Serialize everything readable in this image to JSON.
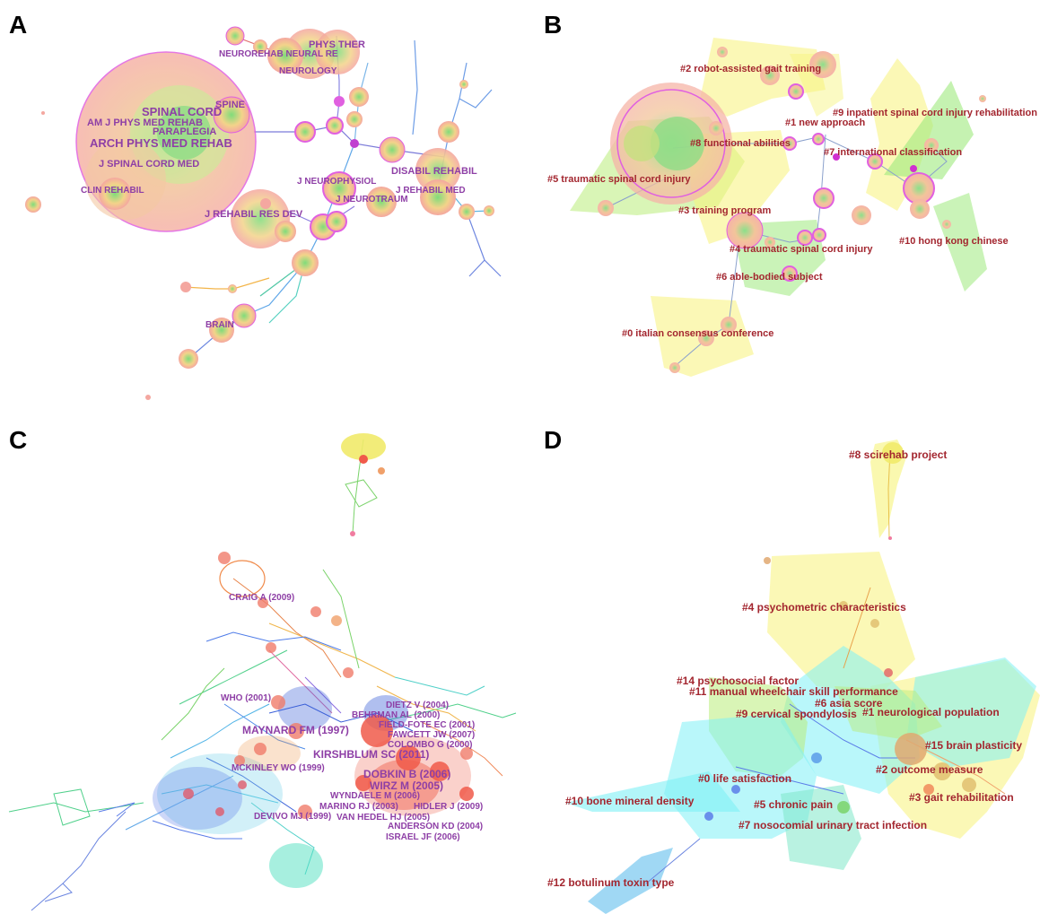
{
  "panels": {
    "a": {
      "letter": "A",
      "labels": {
        "spinal_cord": "SPINAL CORD",
        "arch_phys_med_rehab": "ARCH PHYS MED REHAB",
        "am_j_phys_med_rehab": "AM J PHYS MED REHAB",
        "paraplegia": "PARAPLEGIA",
        "spine": "SPINE",
        "j_spinal_cord_med": "J SPINAL CORD MED",
        "clin_rehabil": "CLIN REHABIL",
        "j_rehabil_res_dev": "J REHABIL RES DEV",
        "neurorehab_neural_re": "NEUROREHAB NEURAL RE",
        "phys_ther": "PHYS THER",
        "neurology": "NEUROLOGY",
        "j_neurophysiol": "J NEUROPHYSIOL",
        "j_neurotraum": "J NEUROTRAUM",
        "disabil_rehabil": "DISABIL REHABIL",
        "j_rehabil_med": "J REHABIL MED",
        "brain": "BRAIN"
      }
    },
    "b": {
      "letter": "B",
      "clusters": {
        "c0": "#0 italian consensus conference",
        "c1": "#1 new approach",
        "c2": "#2 robot-assisted gait training",
        "c3": "#3 training program",
        "c4": "#4 traumatic spinal cord injury",
        "c5": "#5 traumatic spinal cord injury",
        "c6": "#6 able-bodied subject",
        "c7": "#7 international classification",
        "c8": "#8 functional abilities",
        "c9": "#9 inpatient spinal cord injury rehabilitation",
        "c10": "#10 hong kong chinese"
      }
    },
    "c": {
      "letter": "C",
      "labels": {
        "craig": "CRAIG A (2009)",
        "who": "WHO (2001)",
        "maynard": "MAYNARD FM (1997)",
        "mckinley": "MCKINLEY WO (1999)",
        "devivo": "DEVIVO MJ (1999)",
        "kirshblum": "KIRSHBLUM SC (2011)",
        "dietz": "DIETZ V (2004)",
        "behrman": "BEHRMAN AL (2000)",
        "field_fote": "FIELD-FOTE EC (2001)",
        "fawcett": "FAWCETT JW (2007)",
        "colombo": "COLOMBO G (2000)",
        "dobkin": "DOBKIN B (2006)",
        "wirz": "WIRZ M (2005)",
        "wyndaele": "WYNDAELE M (2006)",
        "marino": "MARINO RJ (2003)",
        "hidler": "HIDLER J (2009)",
        "van_hedel": "VAN HEDEL HJ (2005)",
        "anderson": "ANDERSON KD (2004)",
        "israel": "ISRAEL JF (2006)"
      }
    },
    "d": {
      "letter": "D",
      "clusters": {
        "c0": "#0 life satisfaction",
        "c1": "#1 neurological population",
        "c2": "#2 outcome measure",
        "c3": "#3 gait rehabilitation",
        "c4": "#4 psychometric characteristics",
        "c5": "#5 chronic pain",
        "c6": "#6 asia score",
        "c7": "#7 nosocomial urinary tract infection",
        "c8": "#8 scirehab project",
        "c9": "#9 cervical spondylosis",
        "c10": "#10 bone mineral density",
        "c11": "#11 manual wheelchair skill performance",
        "c12": "#12 botulinum toxin type",
        "c14": "#14 psychosocial factor",
        "c15": "#15 brain plasticity"
      }
    }
  }
}
